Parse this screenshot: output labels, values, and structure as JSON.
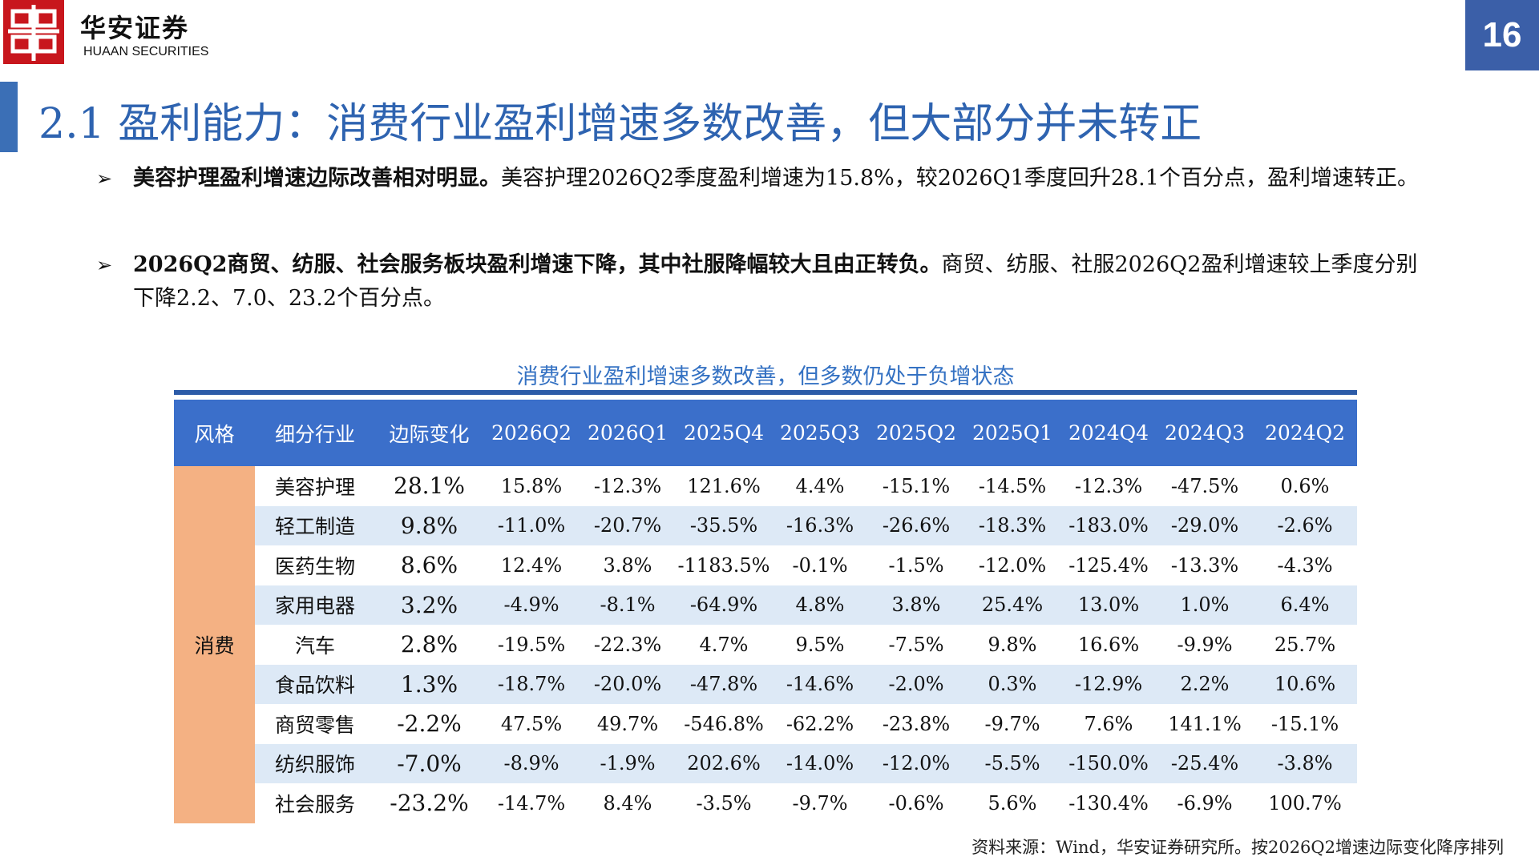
{
  "header": {
    "brand_cn": "华安证券",
    "brand_en": "HUAAN SECURITIES",
    "page_number": "16",
    "colors": {
      "brand_red": "#c8161d",
      "accent_blue": "#3b5fa8"
    }
  },
  "slide": {
    "title": "2.1 盈利能力：消费行业盈利增速多数改善，但大部分并未转正"
  },
  "bullets": [
    {
      "mark": "➢",
      "bold": "美容护理盈利增速边际改善相对明显。",
      "text": "美容护理2026Q2季度盈利增速为15.8%，较2026Q1季度回升28.1个百分点，盈利增速转正。"
    },
    {
      "mark": "➢",
      "bold": "2026Q2商贸、纺服、社会服务板块盈利增速下降，其中社服降幅较大且由正转负。",
      "text": "商贸、纺服、社服2026Q2盈利增速较上季度分别下降2.2、7.0、23.2个百分点。"
    }
  ],
  "table": {
    "title": "消费行业盈利增速多数改善，但多数仍处于负增状态",
    "headers": [
      "风格",
      "细分行业",
      "边际变化",
      "2026Q2",
      "2026Q1",
      "2025Q4",
      "2025Q3",
      "2025Q2",
      "2025Q1",
      "2024Q4",
      "2024Q3",
      "2024Q2"
    ],
    "group": "消费",
    "rows": [
      {
        "industry": "美容护理",
        "change": "28.1%",
        "values": [
          "15.8%",
          "-12.3%",
          "121.6%",
          "4.4%",
          "-15.1%",
          "-14.5%",
          "-12.3%",
          "-47.5%",
          "0.6%"
        ]
      },
      {
        "industry": "轻工制造",
        "change": "9.8%",
        "values": [
          "-11.0%",
          "-20.7%",
          "-35.5%",
          "-16.3%",
          "-26.6%",
          "-18.3%",
          "-183.0%",
          "-29.0%",
          "-2.6%"
        ]
      },
      {
        "industry": "医药生物",
        "change": "8.6%",
        "values": [
          "12.4%",
          "3.8%",
          "-1183.5%",
          "-0.1%",
          "-1.5%",
          "-12.0%",
          "-125.4%",
          "-13.3%",
          "-4.3%"
        ]
      },
      {
        "industry": "家用电器",
        "change": "3.2%",
        "values": [
          "-4.9%",
          "-8.1%",
          "-64.9%",
          "4.8%",
          "3.8%",
          "25.4%",
          "13.0%",
          "1.0%",
          "6.4%"
        ]
      },
      {
        "industry": "汽车",
        "change": "2.8%",
        "values": [
          "-19.5%",
          "-22.3%",
          "4.7%",
          "9.5%",
          "-7.5%",
          "9.8%",
          "16.6%",
          "-9.9%",
          "25.7%"
        ]
      },
      {
        "industry": "食品饮料",
        "change": "1.3%",
        "values": [
          "-18.7%",
          "-20.0%",
          "-47.8%",
          "-14.6%",
          "-2.0%",
          "0.3%",
          "-12.9%",
          "2.2%",
          "10.6%"
        ]
      },
      {
        "industry": "商贸零售",
        "change": "-2.2%",
        "values": [
          "47.5%",
          "49.7%",
          "-546.8%",
          "-62.2%",
          "-23.8%",
          "-9.7%",
          "7.6%",
          "141.1%",
          "-15.1%"
        ]
      },
      {
        "industry": "纺织服饰",
        "change": "-7.0%",
        "values": [
          "-8.9%",
          "-1.9%",
          "202.6%",
          "-14.0%",
          "-12.0%",
          "-5.5%",
          "-150.0%",
          "-25.4%",
          "-3.8%"
        ]
      },
      {
        "industry": "社会服务",
        "change": "-23.2%",
        "values": [
          "-14.7%",
          "8.4%",
          "-3.5%",
          "-9.7%",
          "-0.6%",
          "5.6%",
          "-130.4%",
          "-6.9%",
          "100.7%"
        ]
      }
    ],
    "colors": {
      "header_bg": "#3b6fca",
      "group_bg": "#f4b183",
      "stripe_bg": "#dde9f6"
    }
  },
  "source": "资料来源：Wind，华安证券研究所。按2026Q2增速边际变化降序排列"
}
